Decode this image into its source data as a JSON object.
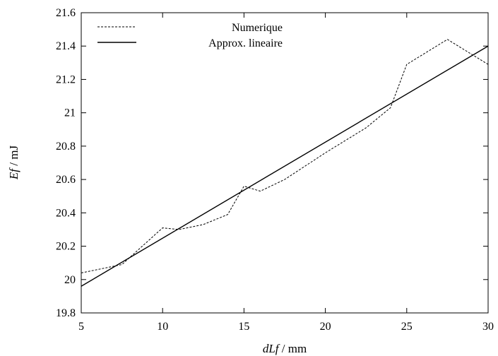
{
  "chart_data": {
    "type": "line",
    "title": "",
    "xlabel_italic": "dLf",
    "xlabel_unit": " / mm",
    "ylabel_italic": "Ef",
    "ylabel_unit": " / mJ",
    "xlim": [
      5,
      30
    ],
    "ylim": [
      19.8,
      21.6
    ],
    "xticks": [
      5,
      10,
      15,
      20,
      25,
      30
    ],
    "yticks": [
      19.8,
      20,
      20.2,
      20.4,
      20.6,
      20.8,
      21,
      21.2,
      21.4,
      21.6
    ],
    "xtick_labels": [
      "5",
      "10",
      "15",
      "20",
      "25",
      "30"
    ],
    "ytick_labels": [
      "19.8",
      "20",
      "20.2",
      "20.4",
      "20.6",
      "20.8",
      "21",
      "21.2",
      "21.4",
      "21.6"
    ],
    "grid": false,
    "legend_position": "top-left",
    "series": [
      {
        "name": "Numerique",
        "style": "dashed",
        "x": [
          5,
          7.5,
          10,
          11,
          12.5,
          14,
          15,
          16,
          17.5,
          20,
          22.5,
          24,
          25,
          27.5,
          30
        ],
        "y": [
          20.04,
          20.09,
          20.31,
          20.3,
          20.33,
          20.39,
          20.56,
          20.53,
          20.6,
          20.76,
          20.91,
          21.03,
          21.29,
          21.44,
          21.29
        ]
      },
      {
        "name": "Approx. lineaire",
        "style": "solid",
        "x": [
          5,
          30
        ],
        "y": [
          19.96,
          21.4
        ]
      }
    ],
    "colors": {
      "axis": "#000000",
      "line": "#000000"
    }
  }
}
